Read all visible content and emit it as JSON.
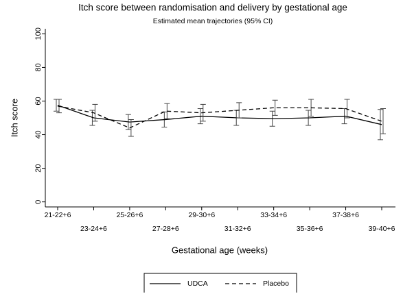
{
  "chart_data": {
    "type": "line",
    "title": "Itch score between randomisation and delivery by gestational age",
    "subtitle": "Estimated mean trajectories (95% CI)",
    "x_label": "Gestational age (weeks)",
    "y_label": "Itch score",
    "categories": [
      "21-22+6",
      "23-24+6",
      "25-26+6",
      "27-28+6",
      "29-30+6",
      "31-32+6",
      "33-34+6",
      "35-36+6",
      "37-38+6",
      "39-40+6"
    ],
    "series": [
      {
        "name": "UDCA",
        "color": "#000000",
        "linestyle": "solid",
        "values": [
          57.5,
          50,
          47.5,
          49,
          51,
          50,
          49.5,
          50,
          51,
          46
        ],
        "errors": [
          3.5,
          4.5,
          4.5,
          4.5,
          4.5,
          4.5,
          4.5,
          4.5,
          4.5,
          9
        ]
      },
      {
        "name": "Placebo",
        "color": "#000000",
        "linestyle": "dashed",
        "values": [
          57,
          53,
          44,
          54,
          53,
          54.5,
          56,
          56,
          55.5,
          48
        ],
        "errors": [
          4,
          5,
          5,
          4.5,
          5,
          4.5,
          4.5,
          5,
          5.5,
          7.5
        ]
      }
    ],
    "ylim": [
      -3,
      103
    ],
    "yticks": [
      0,
      20,
      40,
      60,
      80,
      100
    ],
    "grid": false,
    "legend": "bottom"
  }
}
